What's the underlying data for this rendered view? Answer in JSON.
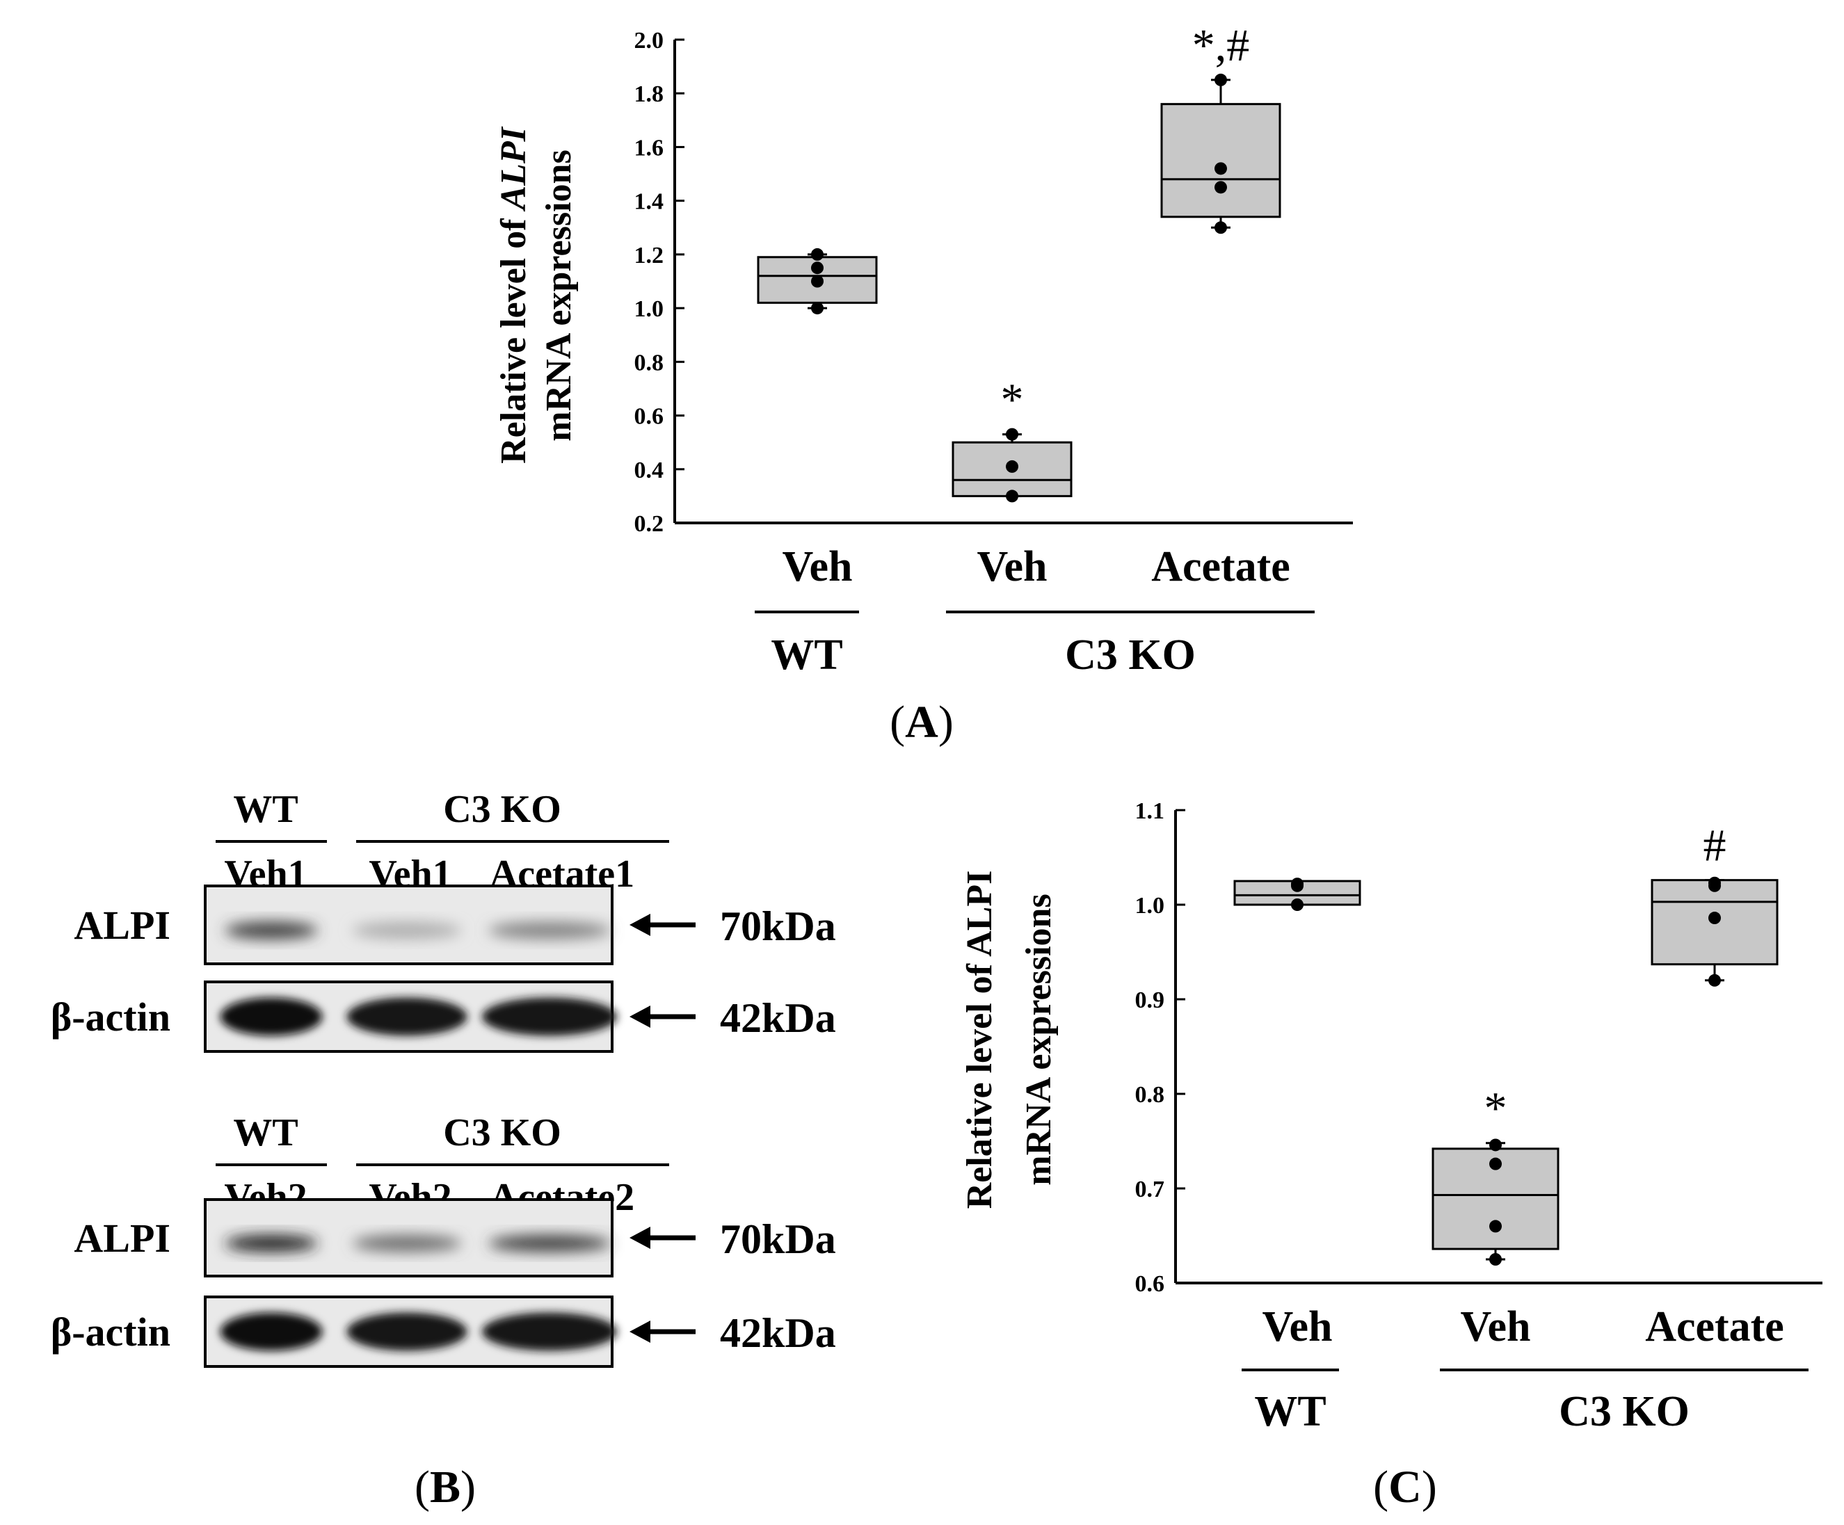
{
  "chart_data": [
    {
      "id": "A",
      "type": "box",
      "ylabel_parts": [
        "Relative level of ",
        "ALPI",
        " mRNA expressions"
      ],
      "ylabel_line1_prefix": "Relative level of ",
      "ylabel_line1_italic": "ALPI",
      "ylabel_line2": "mRNA expressions",
      "ylim": [
        0.2,
        2.0
      ],
      "yticks": [
        "0.2",
        "0.4",
        "0.6",
        "0.8",
        "1.0",
        "1.2",
        "1.4",
        "1.6",
        "1.8",
        "2.0"
      ],
      "categories": [
        "Veh",
        "Veh",
        "Acetate"
      ],
      "groups": [
        {
          "label": "WT",
          "span": [
            0,
            0
          ]
        },
        {
          "label": "C3 KO",
          "span": [
            1,
            2
          ]
        }
      ],
      "boxes": [
        {
          "min": 1.0,
          "q1": 1.02,
          "median": 1.12,
          "q3": 1.19,
          "max": 1.2,
          "points": [
            1.0,
            1.1,
            1.15,
            1.2
          ],
          "sig": ""
        },
        {
          "min": 0.3,
          "q1": 0.3,
          "median": 0.36,
          "q3": 0.5,
          "max": 0.53,
          "points": [
            0.3,
            0.41,
            0.53
          ],
          "sig": "*"
        },
        {
          "min": 1.3,
          "q1": 1.34,
          "median": 1.48,
          "q3": 1.76,
          "max": 1.85,
          "points": [
            1.3,
            1.45,
            1.52,
            1.85
          ],
          "sig": "*,#"
        }
      ],
      "panel_label": "A"
    },
    {
      "id": "C",
      "type": "box",
      "ylabel_line1": "Relative level of ALPI",
      "ylabel_line2": "mRNA expressions",
      "ylim": [
        0.6,
        1.1
      ],
      "yticks": [
        "0.6",
        "0.7",
        "0.8",
        "0.9",
        "1.0",
        "1.1"
      ],
      "categories": [
        "Veh",
        "Veh",
        "Acetate"
      ],
      "groups": [
        {
          "label": "WT",
          "span": [
            0,
            0
          ]
        },
        {
          "label": "C3 KO",
          "span": [
            1,
            2
          ]
        }
      ],
      "boxes": [
        {
          "min": 1.0,
          "q1": 1.0,
          "median": 1.01,
          "q3": 1.025,
          "max": 1.025,
          "points": [
            1.0,
            1.02,
            1.022
          ],
          "sig": ""
        },
        {
          "min": 0.625,
          "q1": 0.636,
          "median": 0.693,
          "q3": 0.742,
          "max": 0.748,
          "points": [
            0.625,
            0.66,
            0.726,
            0.746
          ],
          "sig": "*"
        },
        {
          "min": 0.92,
          "q1": 0.937,
          "median": 1.003,
          "q3": 1.026,
          "max": 1.026,
          "points": [
            0.92,
            0.986,
            1.02,
            1.023
          ],
          "sig": "#"
        }
      ],
      "panel_label": "C"
    }
  ],
  "western_blot": {
    "panel_label": "B",
    "blocks": [
      {
        "group_wt": "WT",
        "group_ko": "C3 KO",
        "lanes": [
          "Veh1",
          "Veh1",
          "Acetate1"
        ],
        "rows": [
          {
            "protein": "ALPI",
            "size": "70kDa",
            "intensity": [
              0.75,
              0.25,
              0.45
            ]
          },
          {
            "protein": "β-actin",
            "size": "42kDa",
            "intensity": [
              1.0,
              0.95,
              0.95
            ]
          }
        ]
      },
      {
        "group_wt": "WT",
        "group_ko": "C3 KO",
        "lanes": [
          "Veh2",
          "Veh2",
          "Acetate2"
        ],
        "rows": [
          {
            "protein": "ALPI",
            "size": "70kDa",
            "intensity": [
              0.9,
              0.55,
              0.75
            ]
          },
          {
            "protein": "β-actin",
            "size": "42kDa",
            "intensity": [
              1.0,
              0.95,
              0.95
            ]
          }
        ]
      }
    ]
  },
  "colors": {
    "box_fill": "#c8c8c8",
    "ink": "#000000",
    "blot_bg": "#e9e9e9"
  }
}
